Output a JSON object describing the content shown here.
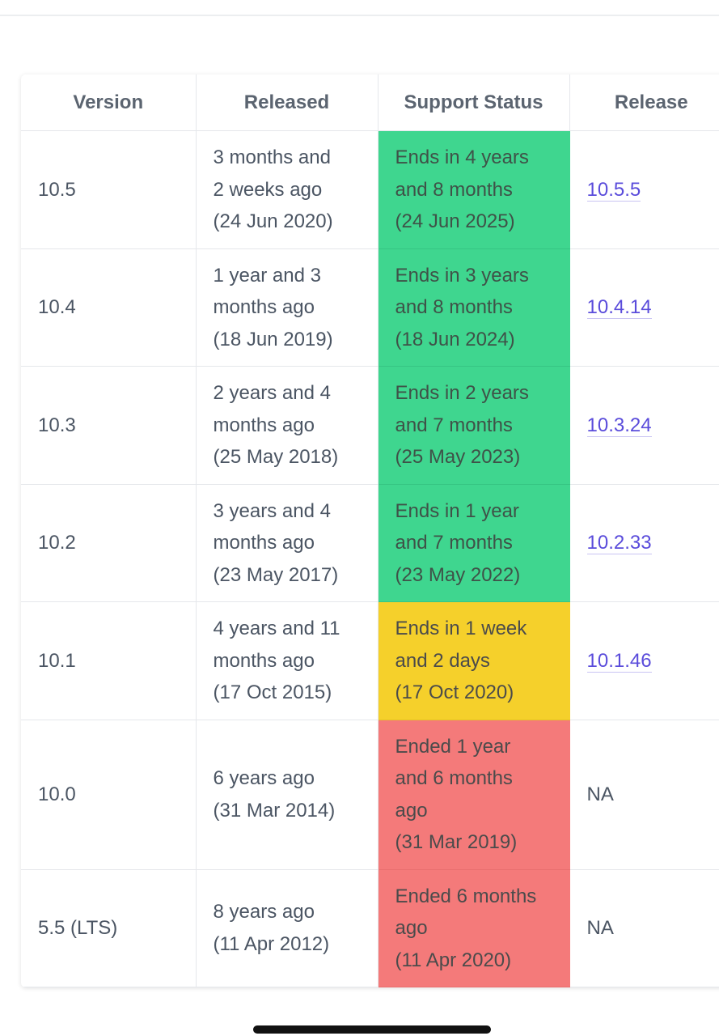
{
  "table": {
    "headers": [
      "Version",
      "Released",
      "Support Status",
      "Release"
    ],
    "rows": [
      {
        "version": "10.5",
        "released": [
          "3 months and",
          "2 weeks ago",
          "(24 Jun 2020)"
        ],
        "status": [
          "Ends in 4 years",
          "and 8 months",
          "(24 Jun 2025)"
        ],
        "status_color": "green",
        "release": "10.5.5",
        "release_is_link": true
      },
      {
        "version": "10.4",
        "released": [
          "1 year and 3",
          "months ago",
          "(18 Jun 2019)"
        ],
        "status": [
          "Ends in 3 years",
          "and 8 months",
          "(18 Jun 2024)"
        ],
        "status_color": "green",
        "release": "10.4.14",
        "release_is_link": true
      },
      {
        "version": "10.3",
        "released": [
          "2 years and 4",
          "months ago",
          "(25 May 2018)"
        ],
        "status": [
          "Ends in 2 years",
          "and 7 months",
          "(25 May 2023)"
        ],
        "status_color": "green",
        "release": "10.3.24",
        "release_is_link": true
      },
      {
        "version": "10.2",
        "released": [
          "3 years and 4",
          "months ago",
          "(23 May 2017)"
        ],
        "status": [
          "Ends in 1 year",
          "and 7 months",
          "(23 May 2022)"
        ],
        "status_color": "green",
        "release": "10.2.33",
        "release_is_link": true
      },
      {
        "version": "10.1",
        "released": [
          "4 years and 11",
          "months ago",
          "(17 Oct 2015)"
        ],
        "status": [
          "Ends in 1 week",
          "and 2 days",
          "(17 Oct 2020)"
        ],
        "status_color": "yellow",
        "release": "10.1.46",
        "release_is_link": true
      },
      {
        "version": "10.0",
        "released": [
          "6 years ago",
          "(31 Mar 2014)"
        ],
        "status": [
          "Ended 1 year",
          "and 6 months",
          "ago",
          "(31 Mar 2019)"
        ],
        "status_color": "red",
        "release": "NA",
        "release_is_link": false
      },
      {
        "version": "5.5 (LTS)",
        "released": [
          "8 years ago",
          "(11 Apr 2012)"
        ],
        "status": [
          "Ended 6 months",
          "ago",
          "(11 Apr 2020)"
        ],
        "status_color": "red",
        "release": "NA",
        "release_is_link": false
      }
    ]
  },
  "colors": {
    "green": "#3fd68f",
    "yellow": "#f5d02b",
    "red": "#f47a7a",
    "link": "#5a4cdb"
  }
}
